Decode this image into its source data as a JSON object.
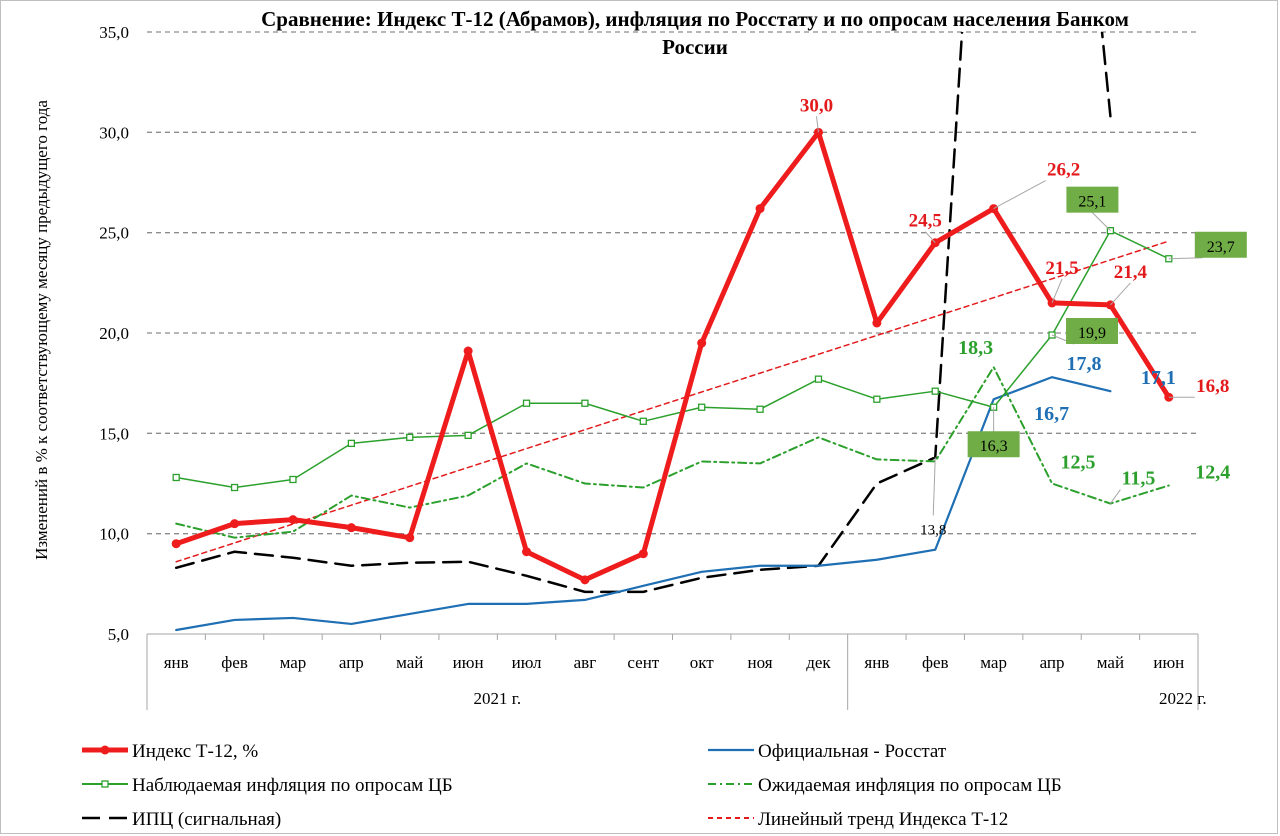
{
  "chart_data": {
    "type": "line",
    "title_lines": [
      "Сравнение: Индекс Т-12 (Абрамов), инфляция по Росстату и по опросам населения Банком",
      "России"
    ],
    "ylabel": "Изменений в % к соответствующему месяцу предыдущего года",
    "ylim": [
      5,
      35
    ],
    "yticks": [
      "5,0",
      "10,0",
      "15,0",
      "20,0",
      "25,0",
      "30,0",
      "35,0"
    ],
    "ytick_values": [
      5,
      10,
      15,
      20,
      25,
      30,
      35
    ],
    "grid": "horizontal dashed",
    "categories": [
      "янв",
      "фев",
      "мар",
      "апр",
      "май",
      "июн",
      "июл",
      "авг",
      "сент",
      "окт",
      "ноя",
      "дек",
      "янв",
      "фев",
      "мар",
      "апр",
      "май",
      "июн"
    ],
    "year_groups": [
      {
        "label": "2021 г.",
        "start": 0,
        "end": 11
      },
      {
        "label": "2022 г.",
        "start": 12,
        "end": 17
      }
    ],
    "series": [
      {
        "name": "ИПЦ (сигнальная)",
        "color": "#000000",
        "style": "dash-long",
        "width": 2.5,
        "marker": "none",
        "values": [
          8.3,
          9.1,
          8.8,
          8.4,
          8.55,
          8.6,
          7.9,
          7.1,
          7.1,
          7.8,
          8.2,
          8.4,
          12.5,
          13.8,
          60,
          60,
          30.8,
          null
        ]
      },
      {
        "name": "Линейный тренд Индекса Т-12",
        "color": "#e31a1c",
        "style": "dash-short",
        "width": 1.5,
        "marker": "none",
        "values": [
          8.6,
          9.54,
          10.48,
          11.42,
          12.36,
          13.3,
          14.24,
          15.18,
          16.12,
          17.06,
          18.0,
          18.94,
          19.88,
          20.82,
          21.76,
          22.7,
          23.64,
          24.58
        ]
      },
      {
        "name": "Официальная - Росстат",
        "color": "#1f6fb4",
        "style": "solid",
        "width": 2.2,
        "marker": "none",
        "values": [
          5.2,
          5.7,
          5.8,
          5.5,
          6.0,
          6.5,
          6.5,
          6.7,
          7.4,
          8.1,
          8.4,
          8.4,
          8.7,
          9.2,
          16.7,
          17.8,
          17.1,
          null
        ]
      },
      {
        "name": "Ожидаемая инфляция по опросам ЦБ",
        "color": "#2ca02c",
        "style": "dash-dot",
        "width": 2,
        "marker": "none",
        "values": [
          10.5,
          9.8,
          10.1,
          11.9,
          11.3,
          11.9,
          13.5,
          12.5,
          12.3,
          13.6,
          13.5,
          14.8,
          13.7,
          13.6,
          18.3,
          12.5,
          11.5,
          12.4
        ]
      },
      {
        "name": "Наблюдаемая инфляция по опросам ЦБ",
        "color": "#2ca02c",
        "style": "solid",
        "width": 1.5,
        "marker": "square",
        "values": [
          12.8,
          12.3,
          12.7,
          14.5,
          14.8,
          14.9,
          16.5,
          16.5,
          15.6,
          16.3,
          16.2,
          17.7,
          16.7,
          17.1,
          16.3,
          19.9,
          25.1,
          23.7
        ]
      },
      {
        "name": "Индекс Т-12, %",
        "color": "#ee1c1c",
        "style": "solid",
        "width": 5,
        "marker": "circle",
        "values": [
          9.5,
          10.5,
          10.7,
          10.3,
          9.8,
          19.1,
          9.1,
          7.7,
          9.0,
          19.5,
          26.2,
          30.0,
          20.5,
          24.5,
          26.2,
          21.5,
          21.4,
          16.8
        ]
      }
    ],
    "data_labels": [
      {
        "text": "30,0",
        "series": "Индекс Т-12, %",
        "color": "#e31a1c",
        "idx": 11,
        "dx": -2,
        "dy": -28,
        "size": 19,
        "bold": true,
        "leader": true
      },
      {
        "text": "24,5",
        "series": "Индекс Т-12, %",
        "color": "#e31a1c",
        "idx": 13,
        "dx": -10,
        "dy": -23,
        "size": 19,
        "bold": true,
        "leader": true
      },
      {
        "text": "26,2",
        "series": "Индекс Т-12, %",
        "color": "#e31a1c",
        "idx": 14,
        "dx": 70,
        "dy": -40,
        "size": 19,
        "bold": true,
        "leader": true
      },
      {
        "text": "21,5",
        "series": "Индекс Т-12, %",
        "color": "#e31a1c",
        "idx": 15,
        "dx": 10,
        "dy": -36,
        "size": 19,
        "bold": true,
        "leader": true
      },
      {
        "text": "21,4",
        "series": "Индекс Т-12, %",
        "color": "#e31a1c",
        "idx": 16,
        "dx": 20,
        "dy": -34,
        "size": 19,
        "bold": true,
        "leader": true
      },
      {
        "text": "16,8",
        "series": "Индекс Т-12, %",
        "color": "#e31a1c",
        "idx": 17,
        "dx": 44,
        "dy": -12,
        "size": 19,
        "bold": true,
        "leader": true
      },
      {
        "text": "17,8",
        "series": "Официальная - Росстат",
        "color": "#1f6fb4",
        "idx": 15,
        "dx": 32,
        "dy": -14,
        "size": 20,
        "bold": true,
        "leader": false
      },
      {
        "text": "17,1",
        "series": "Официальная - Росстат",
        "color": "#1f6fb4",
        "idx": 16,
        "dx": 48,
        "dy": -14,
        "size": 20,
        "bold": true,
        "leader": false
      },
      {
        "text": "16,7",
        "series": "Официальная - Росстат",
        "color": "#1f6fb4",
        "idx": 14,
        "dx": 58,
        "dy": 14,
        "size": 20,
        "bold": true,
        "leader": false
      },
      {
        "text": "18,3",
        "series": "Ожидаемая инфляция по опросам ЦБ",
        "color": "#2ca02c",
        "idx": 14,
        "dx": -18,
        "dy": -20,
        "size": 20,
        "bold": true,
        "leader": false
      },
      {
        "text": "12,5",
        "series": "Ожидаемая инфляция по опросам ЦБ",
        "color": "#2ca02c",
        "idx": 15,
        "dx": 26,
        "dy": -22,
        "size": 20,
        "bold": true,
        "leader": false
      },
      {
        "text": "11,5",
        "series": "Ожидаемая инфляция по опросам ЦБ",
        "color": "#2ca02c",
        "idx": 16,
        "dx": 28,
        "dy": -26,
        "size": 20,
        "bold": true,
        "leader": true
      },
      {
        "text": "12,4",
        "series": "Ожидаемая инфляция по опросам ЦБ",
        "color": "#2ca02c",
        "idx": 17,
        "dx": 44,
        "dy": -14,
        "size": 20,
        "bold": true,
        "leader": false
      },
      {
        "text": "13,8",
        "series": "ИПЦ (сигнальная)",
        "color": "#000000",
        "idx": 13,
        "dx": -2,
        "dy": 70,
        "size": 15,
        "bold": false,
        "leader": true
      },
      {
        "text": "16,3",
        "series": "Наблюдаемая инфляция по опросам ЦБ",
        "color": "#000000",
        "idx": 14,
        "dx": 0,
        "dy": 38,
        "size": 16,
        "bold": false,
        "leader": true,
        "box": "#70ad47"
      },
      {
        "text": "19,9",
        "series": "Наблюдаемая инфляция по опросам ЦБ",
        "color": "#000000",
        "idx": 15,
        "dx": 40,
        "dy": -3,
        "size": 16,
        "bold": false,
        "leader": true,
        "box": "#70ad47"
      },
      {
        "text": "25,1",
        "series": "Наблюдаемая инфляция по опросам ЦБ",
        "color": "#000000",
        "idx": 16,
        "dx": -18,
        "dy": -30,
        "size": 16,
        "bold": false,
        "leader": true,
        "box": "#70ad47"
      },
      {
        "text": "23,7",
        "series": "Наблюдаемая инфляция по опросам ЦБ",
        "color": "#000000",
        "idx": 17,
        "dx": 52,
        "dy": -13,
        "size": 16,
        "bold": false,
        "leader": true,
        "box": "#70ad47"
      }
    ],
    "legend": {
      "placement": "bottom",
      "items": [
        {
          "label": "Индекс Т-12, %",
          "series": "Индекс Т-12, %"
        },
        {
          "label": "Официальная - Росстат",
          "series": "Официальная - Росстат"
        },
        {
          "label": "Наблюдаемая  инфляция по опросам  ЦБ",
          "series": "Наблюдаемая инфляция по опросам ЦБ"
        },
        {
          "label": "Ожидаемая  инфляция по опросам  ЦБ",
          "series": "Ожидаемая инфляция по опросам ЦБ"
        },
        {
          "label": "ИПЦ (сигнальная)",
          "series": "ИПЦ (сигнальная)"
        },
        {
          "label": "Линейный тренд Индекса  Т-12",
          "series": "Линейный тренд Индекса Т-12"
        }
      ]
    }
  }
}
